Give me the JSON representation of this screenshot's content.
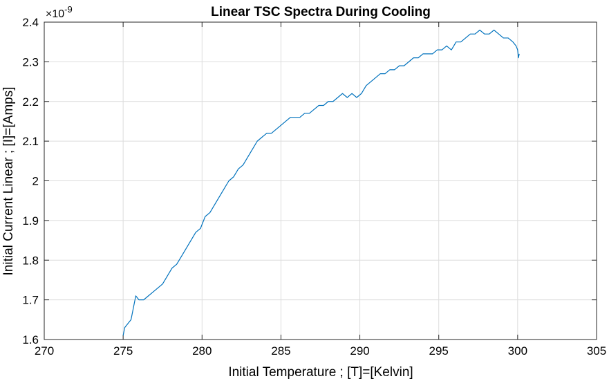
{
  "chart_data": {
    "type": "line",
    "title": "Linear TSC Spectra During Cooling",
    "xlabel": "Initial Temperature ; [T]=[Kelvin]",
    "ylabel": "Initial Current Linear ; [I]=[Amps]",
    "y_exponent_multiplier": "×10",
    "y_exponent_power": "-9",
    "xlim": [
      270,
      305
    ],
    "ylim": [
      1.6,
      2.4
    ],
    "x_ticks": [
      270,
      275,
      280,
      285,
      290,
      295,
      300,
      305
    ],
    "x_tick_labels": [
      "270",
      "275",
      "280",
      "285",
      "290",
      "295",
      "300",
      "305"
    ],
    "y_ticks": [
      1.6,
      1.7,
      1.8,
      1.9,
      2.0,
      2.1,
      2.2,
      2.3,
      2.4
    ],
    "y_tick_labels": [
      "1.6",
      "1.7",
      "1.8",
      "1.9",
      "2",
      "2.1",
      "2.2",
      "2.3",
      "2.4"
    ],
    "grid": true,
    "line_color": "#0072BD",
    "series": [
      {
        "x": [
          275.0,
          275.1,
          275.3,
          275.5,
          275.7,
          275.8,
          276.0,
          276.3,
          276.6,
          276.9,
          277.2,
          277.5,
          277.8,
          278.1,
          278.4,
          278.7,
          279.0,
          279.3,
          279.6,
          279.9,
          280.2,
          280.5,
          280.8,
          281.1,
          281.4,
          281.7,
          282.0,
          282.3,
          282.6,
          282.9,
          283.2,
          283.5,
          283.8,
          284.1,
          284.4,
          284.7,
          285.0,
          285.3,
          285.6,
          285.9,
          286.2,
          286.5,
          286.8,
          287.1,
          287.4,
          287.7,
          288.0,
          288.3,
          288.6,
          288.9,
          289.2,
          289.5,
          289.8,
          290.1,
          290.4,
          290.7,
          291.0,
          291.3,
          291.6,
          291.9,
          292.2,
          292.5,
          292.8,
          293.1,
          293.4,
          293.7,
          294.0,
          294.3,
          294.6,
          294.9,
          295.2,
          295.5,
          295.8,
          296.1,
          296.4,
          296.7,
          297.0,
          297.3,
          297.6,
          297.9,
          298.2,
          298.5,
          298.8,
          299.1,
          299.4,
          299.7,
          299.9,
          300.0,
          300.05,
          300.1
        ],
        "y": [
          1.61,
          1.63,
          1.64,
          1.65,
          1.69,
          1.71,
          1.7,
          1.7,
          1.71,
          1.72,
          1.73,
          1.74,
          1.76,
          1.78,
          1.79,
          1.81,
          1.83,
          1.85,
          1.87,
          1.88,
          1.91,
          1.92,
          1.94,
          1.96,
          1.98,
          2.0,
          2.01,
          2.03,
          2.04,
          2.06,
          2.08,
          2.1,
          2.11,
          2.12,
          2.12,
          2.13,
          2.14,
          2.15,
          2.16,
          2.16,
          2.16,
          2.17,
          2.17,
          2.18,
          2.19,
          2.19,
          2.2,
          2.2,
          2.21,
          2.22,
          2.21,
          2.22,
          2.21,
          2.22,
          2.24,
          2.25,
          2.26,
          2.27,
          2.27,
          2.28,
          2.28,
          2.29,
          2.29,
          2.3,
          2.31,
          2.31,
          2.32,
          2.32,
          2.32,
          2.33,
          2.33,
          2.34,
          2.33,
          2.35,
          2.35,
          2.36,
          2.37,
          2.37,
          2.38,
          2.37,
          2.37,
          2.38,
          2.37,
          2.36,
          2.36,
          2.35,
          2.34,
          2.33,
          2.31,
          2.32
        ]
      }
    ]
  }
}
